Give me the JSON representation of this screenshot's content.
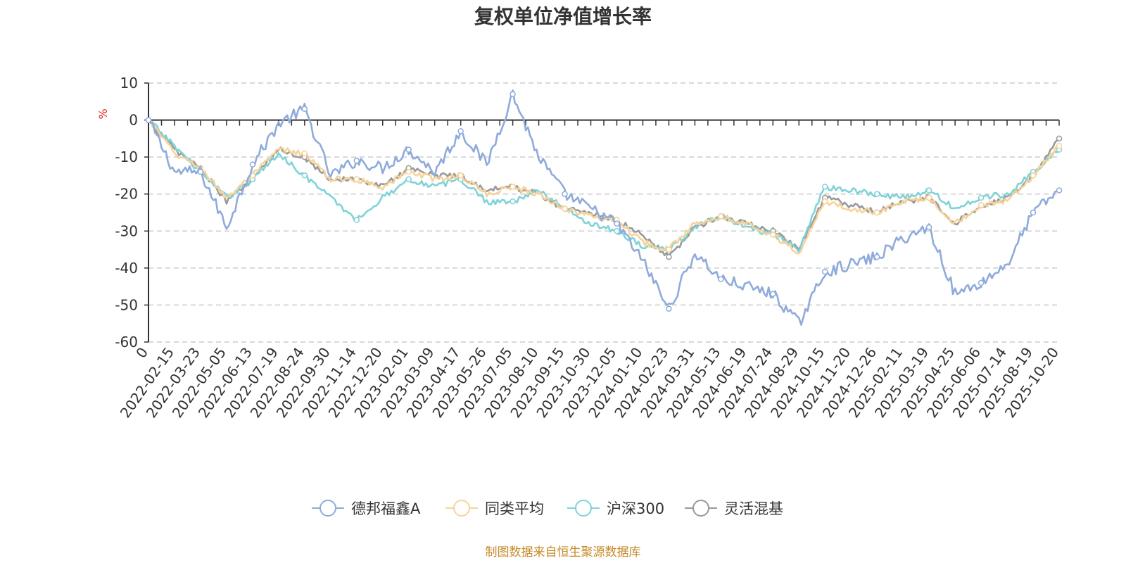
{
  "chart_data": {
    "type": "line",
    "title": "复权单位净值增长率",
    "ylabel": "%",
    "ylim": [
      -60,
      10
    ],
    "yticks": [
      10,
      0,
      -10,
      -20,
      -30,
      -40,
      -50,
      -60
    ],
    "grid": true,
    "legend_position": "bottom-center",
    "x_categories": [
      "0",
      "2022-02-15",
      "2022-03-23",
      "2022-05-05",
      "2022-06-13",
      "2022-07-19",
      "2022-08-24",
      "2022-09-30",
      "2022-11-14",
      "2022-12-20",
      "2023-02-01",
      "2023-03-09",
      "2023-04-17",
      "2023-05-26",
      "2023-07-05",
      "2023-08-10",
      "2023-09-15",
      "2023-10-30",
      "2023-12-05",
      "2024-01-10",
      "2024-02-23",
      "2024-03-31",
      "2024-05-13",
      "2024-06-19",
      "2024-07-24",
      "2024-08-29",
      "2024-10-15",
      "2024-11-20",
      "2024-12-26",
      "2025-02-11",
      "2025-03-19",
      "2025-04-25",
      "2025-06-06",
      "2025-07-14",
      "2025-08-19",
      "2025-10-20"
    ],
    "series": [
      {
        "name": "德邦福鑫A",
        "color": "#8eabdb",
        "values": [
          0,
          -14,
          -14,
          -29,
          -12,
          -1,
          3,
          -15,
          -11,
          -13,
          -8,
          -14,
          -3,
          -12,
          7,
          -10,
          -20,
          -24,
          -28,
          -38,
          -51,
          -36,
          -43,
          -45,
          -47,
          -55,
          -41,
          -39,
          -37,
          -32,
          -29,
          -47,
          -44,
          -39,
          -25,
          -19
        ]
      },
      {
        "name": "同类平均",
        "color": "#f7d39a",
        "values": [
          0,
          -9,
          -13,
          -21,
          -15,
          -8,
          -9,
          -16,
          -16,
          -18,
          -14,
          -16,
          -15,
          -20,
          -18,
          -20,
          -24,
          -26,
          -27,
          -33,
          -35,
          -28,
          -26,
          -28,
          -31,
          -36,
          -22,
          -24,
          -25,
          -22,
          -21,
          -28,
          -23,
          -22,
          -15,
          -7
        ]
      },
      {
        "name": "沪深300",
        "color": "#7fd3d8",
        "values": [
          0,
          -7,
          -14,
          -21,
          -16,
          -9,
          -15,
          -21,
          -27,
          -21,
          -16,
          -18,
          -16,
          -22,
          -22,
          -19,
          -24,
          -28,
          -30,
          -34,
          -35,
          -29,
          -26,
          -29,
          -31,
          -35,
          -18,
          -19,
          -20,
          -21,
          -19,
          -24,
          -21,
          -20,
          -14,
          -8
        ]
      },
      {
        "name": "灵活混基",
        "color": "#999999",
        "values": [
          0,
          -8,
          -13,
          -22,
          -16,
          -8,
          -10,
          -16,
          -16,
          -18,
          -13,
          -15,
          -15,
          -19,
          -18,
          -20,
          -24,
          -25,
          -27,
          -31,
          -37,
          -29,
          -26,
          -28,
          -30,
          -35,
          -21,
          -23,
          -25,
          -22,
          -21,
          -28,
          -23,
          -21,
          -15,
          -5
        ]
      }
    ]
  },
  "source_text": "制图数据来自恒生聚源数据库",
  "colors": {
    "axis": "#333333",
    "grid": "#cccccc",
    "ylabel": "#e01f1f",
    "source": "#c68a2a"
  }
}
